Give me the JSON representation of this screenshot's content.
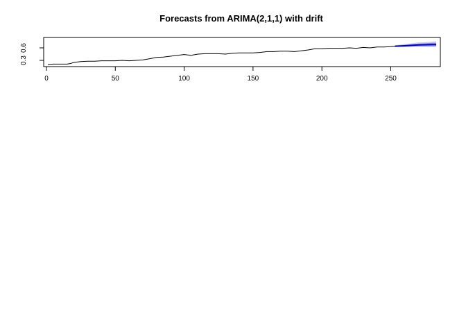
{
  "chart_data": {
    "type": "line",
    "title": "Forecasts from ARIMA(2,1,1) with drift",
    "xlabel": "",
    "ylabel": "",
    "xlim": [
      -2,
      286
    ],
    "ylim": [
      0.15,
      0.85
    ],
    "x_ticks": [
      0,
      50,
      100,
      150,
      200,
      250
    ],
    "y_ticks": [
      0.3,
      0.6
    ],
    "y_tick_labels": [
      "0.3",
      "0.6"
    ],
    "grid": false,
    "legend": "none",
    "colors": {
      "observed": "#000000",
      "forecast_mean": "#0000cc",
      "ci80": "#8f8fe0",
      "ci95": "#d0d0e8"
    },
    "observed": {
      "x": [
        1,
        5,
        10,
        15,
        17,
        20,
        25,
        30,
        35,
        40,
        45,
        50,
        55,
        60,
        65,
        70,
        75,
        80,
        85,
        90,
        95,
        100,
        105,
        110,
        115,
        120,
        125,
        130,
        135,
        140,
        145,
        150,
        155,
        160,
        165,
        170,
        175,
        180,
        185,
        190,
        195,
        200,
        205,
        210,
        215,
        220,
        225,
        230,
        235,
        240,
        245,
        250,
        253
      ],
      "y": [
        0.2,
        0.21,
        0.21,
        0.21,
        0.22,
        0.25,
        0.27,
        0.28,
        0.28,
        0.29,
        0.29,
        0.29,
        0.3,
        0.29,
        0.3,
        0.31,
        0.34,
        0.37,
        0.38,
        0.4,
        0.42,
        0.44,
        0.42,
        0.45,
        0.46,
        0.46,
        0.46,
        0.45,
        0.47,
        0.48,
        0.48,
        0.48,
        0.49,
        0.51,
        0.51,
        0.52,
        0.52,
        0.51,
        0.53,
        0.55,
        0.58,
        0.58,
        0.59,
        0.59,
        0.59,
        0.6,
        0.59,
        0.61,
        0.6,
        0.62,
        0.62,
        0.63,
        0.64
      ]
    },
    "forecast": {
      "x": [
        253,
        260,
        270,
        280,
        283
      ],
      "mean": [
        0.64,
        0.65,
        0.67,
        0.68,
        0.68
      ],
      "lo80": [
        0.63,
        0.63,
        0.64,
        0.64,
        0.64
      ],
      "hi80": [
        0.65,
        0.67,
        0.7,
        0.72,
        0.72
      ],
      "lo95": [
        0.62,
        0.62,
        0.62,
        0.62,
        0.62
      ],
      "hi95": [
        0.66,
        0.69,
        0.73,
        0.75,
        0.76
      ]
    }
  }
}
